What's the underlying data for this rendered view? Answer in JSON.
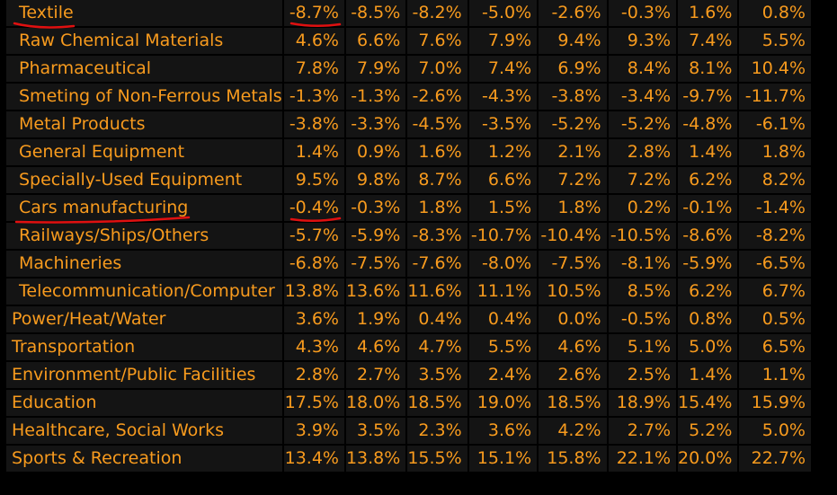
{
  "rows": [
    {
      "label": "Textile",
      "indent": true,
      "values": [
        "-8.7%",
        "-8.5%",
        "-8.2%",
        "-5.0%",
        "-2.6%",
        "-0.3%",
        "1.6%",
        "0.8%"
      ]
    },
    {
      "label": "Raw Chemical Materials",
      "indent": true,
      "values": [
        "4.6%",
        "6.6%",
        "7.6%",
        "7.9%",
        "9.4%",
        "9.3%",
        "7.4%",
        "5.5%"
      ]
    },
    {
      "label": "Pharmaceutical",
      "indent": true,
      "values": [
        "7.8%",
        "7.9%",
        "7.0%",
        "7.4%",
        "6.9%",
        "8.4%",
        "8.1%",
        "10.4%"
      ]
    },
    {
      "label": "Smeting of Non-Ferrous Metals",
      "indent": true,
      "values": [
        "-1.3%",
        "-1.3%",
        "-2.6%",
        "-4.3%",
        "-3.8%",
        "-3.4%",
        "-9.7%",
        "-11.7%"
      ]
    },
    {
      "label": "Metal Products",
      "indent": true,
      "values": [
        "-3.8%",
        "-3.3%",
        "-4.5%",
        "-3.5%",
        "-5.2%",
        "-5.2%",
        "-4.8%",
        "-6.1%"
      ]
    },
    {
      "label": "General Equipment",
      "indent": true,
      "values": [
        "1.4%",
        "0.9%",
        "1.6%",
        "1.2%",
        "2.1%",
        "2.8%",
        "1.4%",
        "1.8%"
      ]
    },
    {
      "label": "Specially-Used Equipment",
      "indent": true,
      "values": [
        "9.5%",
        "9.8%",
        "8.7%",
        "6.6%",
        "7.2%",
        "7.2%",
        "6.2%",
        "8.2%"
      ]
    },
    {
      "label": "Cars manufacturing",
      "indent": true,
      "values": [
        "-0.4%",
        "-0.3%",
        "1.8%",
        "1.5%",
        "1.8%",
        "0.2%",
        "-0.1%",
        "-1.4%"
      ]
    },
    {
      "label": "Railways/Ships/Others",
      "indent": true,
      "values": [
        "-5.7%",
        "-5.9%",
        "-8.3%",
        "-10.7%",
        "-10.4%",
        "-10.5%",
        "-8.6%",
        "-8.2%"
      ]
    },
    {
      "label": "Machineries",
      "indent": true,
      "values": [
        "-6.8%",
        "-7.5%",
        "-7.6%",
        "-8.0%",
        "-7.5%",
        "-8.1%",
        "-5.9%",
        "-6.5%"
      ]
    },
    {
      "label": "Telecommunication/Computer",
      "indent": true,
      "values": [
        "13.8%",
        "13.6%",
        "11.6%",
        "11.1%",
        "10.5%",
        "8.5%",
        "6.2%",
        "6.7%"
      ]
    },
    {
      "label": "Power/Heat/Water",
      "indent": false,
      "values": [
        "3.6%",
        "1.9%",
        "0.4%",
        "0.4%",
        "0.0%",
        "-0.5%",
        "0.8%",
        "0.5%"
      ]
    },
    {
      "label": "Transportation",
      "indent": false,
      "values": [
        "4.3%",
        "4.6%",
        "4.7%",
        "5.5%",
        "4.6%",
        "5.1%",
        "5.0%",
        "6.5%"
      ]
    },
    {
      "label": "Environment/Public Facilities",
      "indent": false,
      "values": [
        "2.8%",
        "2.7%",
        "3.5%",
        "2.4%",
        "2.6%",
        "2.5%",
        "1.4%",
        "1.1%"
      ]
    },
    {
      "label": "Education",
      "indent": false,
      "values": [
        "17.5%",
        "18.0%",
        "18.5%",
        "19.0%",
        "18.5%",
        "18.9%",
        "15.4%",
        "15.9%"
      ]
    },
    {
      "label": "Healthcare, Social Works",
      "indent": false,
      "values": [
        "3.9%",
        "3.5%",
        "2.3%",
        "3.6%",
        "4.2%",
        "2.7%",
        "5.2%",
        "5.0%"
      ]
    },
    {
      "label": "Sports & Recreation",
      "indent": false,
      "values": [
        "13.4%",
        "13.8%",
        "15.5%",
        "15.1%",
        "15.8%",
        "22.1%",
        "20.0%",
        "22.7%"
      ]
    }
  ],
  "colors": {
    "background": "#000000",
    "cell": "#141414",
    "text": "#f89b1e",
    "annotation": "#e01010"
  }
}
